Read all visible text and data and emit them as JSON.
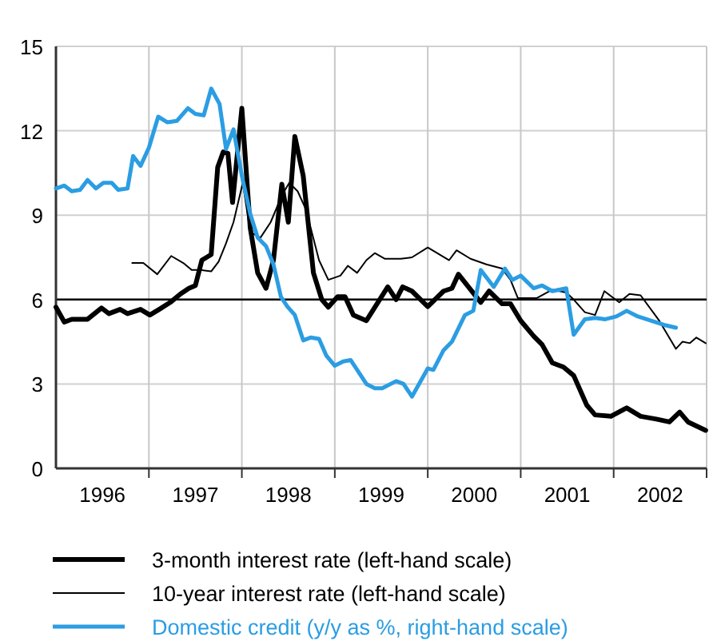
{
  "chart_data": {
    "type": "line",
    "xlim": [
      1996,
      2003
    ],
    "ylim": [
      0,
      15
    ],
    "xticks": [
      {
        "value": 1996.5,
        "label": "1996"
      },
      {
        "value": 1997,
        "label": null
      },
      {
        "value": 1997.5,
        "label": "1997"
      },
      {
        "value": 1998,
        "label": null
      },
      {
        "value": 1998.5,
        "label": "1998"
      },
      {
        "value": 1999,
        "label": null
      },
      {
        "value": 1999.5,
        "label": "1999"
      },
      {
        "value": 2000,
        "label": null
      },
      {
        "value": 2000.5,
        "label": "2000"
      },
      {
        "value": 2001,
        "label": null
      },
      {
        "value": 2001.5,
        "label": "2001"
      },
      {
        "value": 2002,
        "label": null
      },
      {
        "value": 2002.5,
        "label": "2002"
      },
      {
        "value": 2003,
        "label": null
      }
    ],
    "yticks": [
      0,
      3,
      6,
      9,
      12,
      15
    ],
    "grid": true,
    "legend": "bottom",
    "line_style": "solid",
    "ref_lines": [
      {
        "axis": "y",
        "value": 6,
        "color": "#000000"
      }
    ],
    "series": [
      {
        "name": "3-month interest rate (left-hand scale)",
        "color": "#000000",
        "x": [
          1996.0,
          1996.09,
          1996.17,
          1996.34,
          1996.49,
          1996.57,
          1996.69,
          1996.77,
          1996.91,
          1997.01,
          1997.11,
          1997.23,
          1997.34,
          1997.43,
          1997.5,
          1997.57,
          1997.67,
          1997.74,
          1997.8,
          1997.85,
          1997.9,
          1998.0,
          1998.09,
          1998.17,
          1998.26,
          1998.34,
          1998.43,
          1998.5,
          1998.57,
          1998.66,
          1998.77,
          1998.86,
          1998.93,
          1999.03,
          1999.11,
          1999.2,
          1999.34,
          1999.57,
          1999.66,
          1999.73,
          1999.83,
          2000.0,
          2000.17,
          2000.26,
          2000.33,
          2000.57,
          2000.66,
          2000.8,
          2000.89,
          2001.0,
          2001.14,
          2001.23,
          2001.34,
          2001.46,
          2001.57,
          2001.71,
          2001.8,
          2001.97,
          2002.14,
          2002.29,
          2002.46,
          2002.6,
          2002.71,
          2002.8,
          2002.99
        ],
        "values": [
          5.73,
          5.2,
          5.3,
          5.3,
          5.7,
          5.5,
          5.65,
          5.5,
          5.65,
          5.45,
          5.65,
          5.9,
          6.2,
          6.4,
          6.5,
          7.4,
          7.6,
          10.7,
          11.25,
          11.2,
          9.45,
          12.8,
          8.55,
          6.95,
          6.4,
          7.4,
          10.1,
          8.75,
          11.8,
          10.4,
          6.95,
          6.0,
          5.73,
          6.1,
          6.1,
          5.45,
          5.25,
          6.45,
          6.0,
          6.45,
          6.3,
          5.75,
          6.3,
          6.4,
          6.9,
          5.9,
          6.3,
          5.85,
          5.85,
          5.25,
          4.7,
          4.4,
          3.75,
          3.6,
          3.3,
          2.25,
          1.9,
          1.85,
          2.15,
          1.85,
          1.75,
          1.65,
          2.0,
          1.65,
          1.35
        ]
      },
      {
        "name": "10-year interest rate (left-hand scale)",
        "color": "#000000",
        "x": [
          1996.82,
          1996.94,
          1997.09,
          1997.24,
          1997.37,
          1997.46,
          1997.56,
          1997.67,
          1997.75,
          1997.83,
          1997.91,
          1998.01,
          1998.09,
          1998.2,
          1998.31,
          1998.43,
          1998.51,
          1998.6,
          1998.69,
          1998.83,
          1998.93,
          1999.06,
          1999.14,
          1999.24,
          1999.34,
          1999.43,
          1999.54,
          1999.71,
          1999.83,
          2000.0,
          2000.23,
          2000.31,
          2000.46,
          2000.63,
          2000.8,
          2000.89,
          2000.97,
          2001.17,
          2001.34,
          2001.49,
          2001.57,
          2001.69,
          2001.8,
          2001.9,
          2002.06,
          2002.17,
          2002.29,
          2002.49,
          2002.67,
          2002.74,
          2002.82,
          2002.89,
          2002.99
        ],
        "values": [
          7.3,
          7.3,
          6.9,
          7.55,
          7.3,
          7.05,
          7.05,
          7.0,
          7.35,
          8.0,
          8.75,
          10.15,
          8.4,
          8.2,
          8.75,
          9.7,
          10.15,
          9.85,
          9.2,
          7.4,
          6.7,
          6.85,
          7.2,
          6.95,
          7.4,
          7.65,
          7.45,
          7.45,
          7.5,
          7.85,
          7.4,
          7.75,
          7.45,
          7.25,
          7.1,
          6.7,
          6.05,
          6.05,
          6.35,
          6.25,
          6.0,
          5.55,
          5.45,
          6.3,
          5.9,
          6.2,
          6.15,
          5.25,
          4.25,
          4.5,
          4.45,
          4.65,
          4.45
        ]
      },
      {
        "name": "Domestic credit (y/y as %, right-hand scale)",
        "color": "#2b9de3",
        "x": [
          1996.0,
          1996.09,
          1996.17,
          1996.26,
          1996.34,
          1996.43,
          1996.51,
          1996.6,
          1996.67,
          1996.77,
          1996.83,
          1996.91,
          1997.0,
          1997.1,
          1997.2,
          1997.3,
          1997.42,
          1997.5,
          1997.59,
          1997.67,
          1997.76,
          1997.83,
          1997.91,
          1998.0,
          1998.09,
          1998.17,
          1998.26,
          1998.34,
          1998.42,
          1998.49,
          1998.57,
          1998.66,
          1998.74,
          1998.83,
          1998.91,
          1999.0,
          1999.09,
          1999.17,
          1999.34,
          1999.43,
          1999.51,
          1999.66,
          1999.74,
          1999.83,
          2000.0,
          2000.06,
          2000.17,
          2000.26,
          2000.4,
          2000.49,
          2000.57,
          2000.71,
          2000.83,
          2000.91,
          2001.0,
          2001.14,
          2001.23,
          2001.34,
          2001.49,
          2001.57,
          2001.69,
          2001.8,
          2001.91,
          2002.03,
          2002.14,
          2002.26,
          2002.4,
          2002.54,
          2002.67
        ],
        "values": [
          9.95,
          10.05,
          9.85,
          9.9,
          10.25,
          9.95,
          10.15,
          10.15,
          9.9,
          9.95,
          11.1,
          10.75,
          11.4,
          12.5,
          12.3,
          12.35,
          12.8,
          12.6,
          12.55,
          13.5,
          12.95,
          11.35,
          12.05,
          10.4,
          9.05,
          8.2,
          7.9,
          7.25,
          6.1,
          5.75,
          5.45,
          4.55,
          4.65,
          4.6,
          4.0,
          3.65,
          3.8,
          3.85,
          3.0,
          2.85,
          2.85,
          3.1,
          3.0,
          2.55,
          3.55,
          3.5,
          4.2,
          4.5,
          5.45,
          5.6,
          7.05,
          6.45,
          7.1,
          6.7,
          6.85,
          6.4,
          6.5,
          6.3,
          6.4,
          4.75,
          5.3,
          5.35,
          5.3,
          5.4,
          5.6,
          5.4,
          5.25,
          5.1,
          5.0
        ]
      }
    ]
  }
}
